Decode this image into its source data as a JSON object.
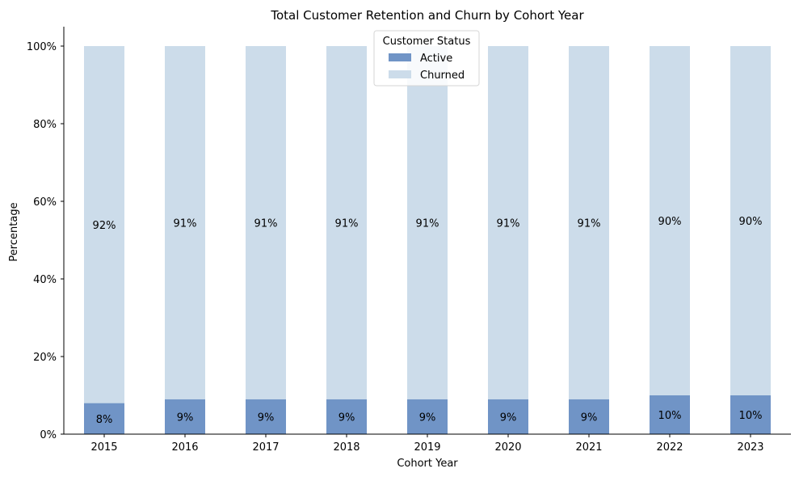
{
  "chart_data": {
    "type": "bar",
    "stacked": true,
    "title": "Total Customer Retention and Churn by Cohort Year",
    "xlabel": "Cohort Year",
    "ylabel": "Percentage",
    "categories": [
      "2015",
      "2016",
      "2017",
      "2018",
      "2019",
      "2020",
      "2021",
      "2022",
      "2023"
    ],
    "ylim": [
      0,
      105
    ],
    "yticks": [
      0,
      20,
      40,
      60,
      80,
      100
    ],
    "ytick_labels": [
      "0%",
      "20%",
      "40%",
      "60%",
      "80%",
      "100%"
    ],
    "grid": false,
    "legend": {
      "title": "Customer Status",
      "placement": "top-center"
    },
    "series": [
      {
        "name": "Active",
        "color": "#7094c6",
        "values": [
          8,
          9,
          9,
          9,
          9,
          9,
          9,
          10,
          10
        ],
        "labels": [
          "8%",
          "9%",
          "9%",
          "9%",
          "9%",
          "9%",
          "9%",
          "10%",
          "10%"
        ]
      },
      {
        "name": "Churned",
        "color": "#ccdcea",
        "values": [
          92,
          91,
          91,
          91,
          91,
          91,
          91,
          90,
          90
        ],
        "labels": [
          "92%",
          "91%",
          "91%",
          "91%",
          "91%",
          "91%",
          "91%",
          "90%",
          "90%"
        ]
      }
    ]
  }
}
